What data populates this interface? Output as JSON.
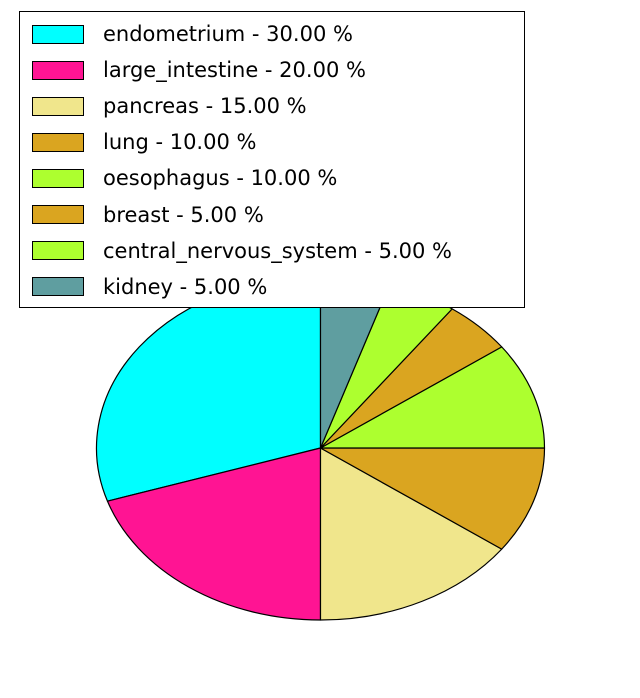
{
  "chart_data": {
    "type": "pie",
    "title": "",
    "start_angle": 90,
    "counterclock": true,
    "legend_position": "upper left",
    "slices": [
      {
        "label": "endometrium",
        "value": 30.0,
        "color": "#00FFFF",
        "legend_text": "endometrium - 30.00 %"
      },
      {
        "label": "large_intestine",
        "value": 20.0,
        "color": "#FF1493",
        "legend_text": "large_intestine - 20.00 %"
      },
      {
        "label": "pancreas",
        "value": 15.0,
        "color": "#F0E68C",
        "legend_text": "pancreas - 15.00 %"
      },
      {
        "label": "lung",
        "value": 10.0,
        "color": "#DAA520",
        "legend_text": "lung - 10.00 %"
      },
      {
        "label": "oesophagus",
        "value": 10.0,
        "color": "#ADFF2F",
        "legend_text": "oesophagus - 10.00 %"
      },
      {
        "label": "breast",
        "value": 5.0,
        "color": "#DAA520",
        "legend_text": "breast - 5.00 %"
      },
      {
        "label": "central_nervous_system",
        "value": 5.0,
        "color": "#ADFF2F",
        "legend_text": "central_nervous_system - 5.00 %"
      },
      {
        "label": "kidney",
        "value": 5.0,
        "color": "#5F9EA0",
        "legend_text": "kidney - 5.00 %"
      }
    ],
    "styles": {
      "background": "#FFFFFF",
      "slice_stroke": "#000000",
      "legend_border": "#000000",
      "text_color": "#000000"
    }
  }
}
